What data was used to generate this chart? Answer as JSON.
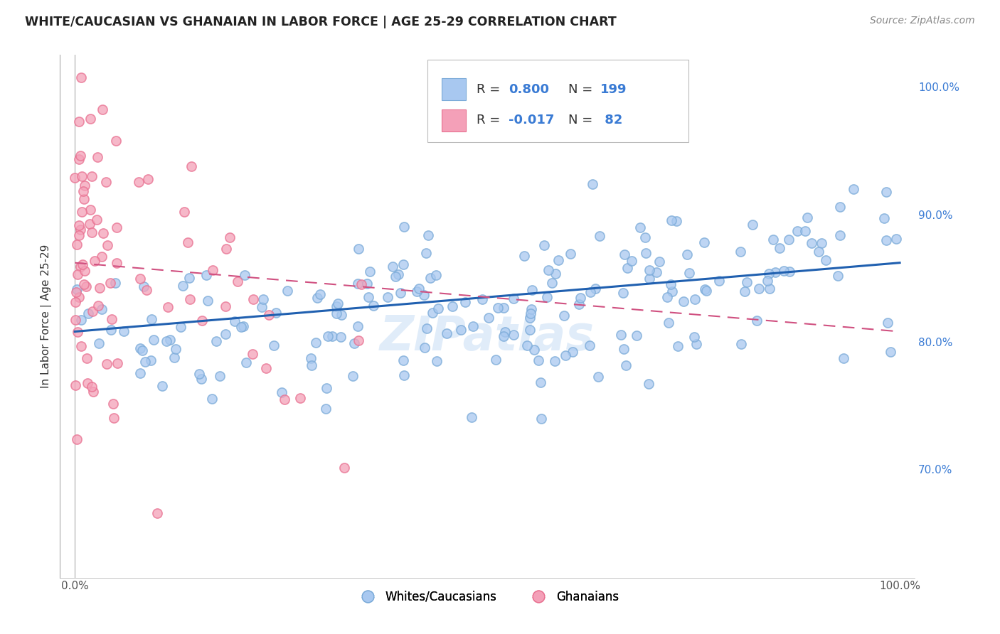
{
  "title": "WHITE/CAUCASIAN VS GHANAIAN IN LABOR FORCE | AGE 25-29 CORRELATION CHART",
  "source": "Source: ZipAtlas.com",
  "ylabel": "In Labor Force | Age 25-29",
  "legend_blue_label": "Whites/Caucasians",
  "legend_pink_label": "Ghanaians",
  "blue_color": "#a8c8f0",
  "pink_color": "#f4a0b8",
  "blue_edge_color": "#7aaad8",
  "pink_edge_color": "#e87090",
  "blue_line_color": "#2060b0",
  "pink_line_color": "#d05080",
  "watermark": "ZIPatlas",
  "background_color": "#ffffff",
  "grid_color": "#cccccc",
  "blue_r": 0.8,
  "blue_n": 199,
  "pink_r": -0.017,
  "pink_n": 82,
  "legend_text_color": "#3a7bd4",
  "label_color": "#3a7bd4",
  "blue_trend_y0": 0.808,
  "blue_trend_y1": 0.862,
  "pink_trend_y0": 0.862,
  "pink_trend_y1": 0.808,
  "ylim_low": 0.615,
  "ylim_high": 1.025,
  "xlim_low": -0.018,
  "xlim_high": 1.018
}
